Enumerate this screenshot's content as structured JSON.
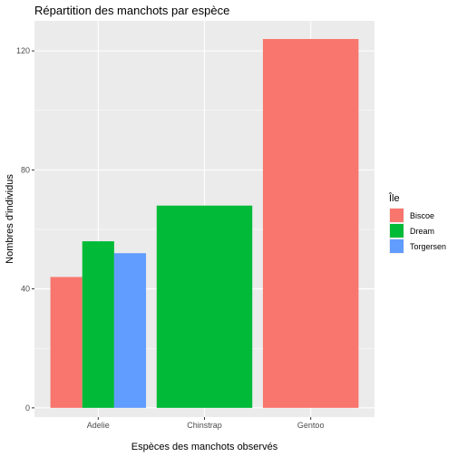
{
  "chart_data": {
    "type": "bar",
    "position": "dodge",
    "title": "Répartition des manchots par espèce",
    "xlabel": "Espèces des manchots observés",
    "ylabel": "Nombres d'individus",
    "categories": [
      "Adelie",
      "Chinstrap",
      "Gentoo"
    ],
    "yticks": [
      0,
      40,
      80,
      120
    ],
    "ylim": [
      -3.1,
      130.1
    ],
    "grid": true,
    "legend": {
      "title": "Île",
      "placement": "right",
      "entries": [
        {
          "name": "Biscoe",
          "color": "#F8766D"
        },
        {
          "name": "Dream",
          "color": "#00BA38"
        },
        {
          "name": "Torgersen",
          "color": "#619CFF"
        }
      ]
    },
    "bars": [
      {
        "category": "Adelie",
        "series": "Biscoe",
        "value": 44
      },
      {
        "category": "Adelie",
        "series": "Dream",
        "value": 56
      },
      {
        "category": "Adelie",
        "series": "Torgersen",
        "value": 52
      },
      {
        "category": "Chinstrap",
        "series": "Dream",
        "value": 68
      },
      {
        "category": "Gentoo",
        "series": "Biscoe",
        "value": 124
      }
    ],
    "colors": {
      "panel_background": "#EBEBEB",
      "grid_major": "#FFFFFF",
      "tick_text": "#4D4D4D"
    }
  }
}
